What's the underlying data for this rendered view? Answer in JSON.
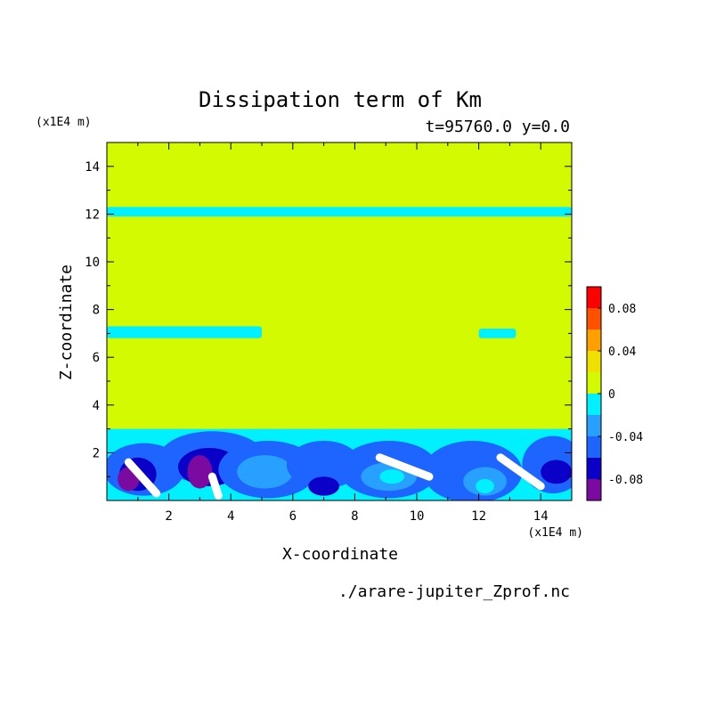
{
  "chart_data": {
    "type": "heatmap",
    "title": "Dissipation term of Km",
    "subtitle": "t=95760.0 y=0.0",
    "xlabel": "X-coordinate",
    "ylabel": "Z-coordinate",
    "x_unit": "(x1E4 m)",
    "y_unit": "(x1E4 m)",
    "source_file": "./arare-jupiter_Zprof.nc",
    "xlim": [
      0,
      15
    ],
    "ylim": [
      0,
      15
    ],
    "x_ticks": [
      2,
      4,
      6,
      8,
      10,
      12,
      14
    ],
    "y_ticks": [
      2,
      4,
      6,
      8,
      10,
      12,
      14
    ],
    "x_tick_labels": [
      "2",
      "4",
      "6",
      "8",
      "10",
      "12",
      "14"
    ],
    "y_tick_labels": [
      "2",
      "4",
      "6",
      "8",
      "10",
      "12",
      "14"
    ],
    "colorbar": {
      "levels": [
        -0.1,
        -0.08,
        -0.06,
        -0.04,
        -0.02,
        0,
        0.02,
        0.04,
        0.06,
        0.08,
        0.1
      ],
      "colors": [
        "#7a0aa0",
        "#0a00c8",
        "#1e64ff",
        "#28a0ff",
        "#00f0ff",
        "#d4fa00",
        "#f0e000",
        "#ffa000",
        "#ff5000",
        "#ff0000",
        "#ffaaaa"
      ],
      "tick_values": [
        -0.08,
        -0.04,
        0,
        0.04,
        0.08
      ],
      "tick_labels": [
        "-0.08",
        "-0.04",
        "0",
        "0.04",
        "0.08"
      ]
    },
    "background_value": 0,
    "regions": [
      {
        "value": -0.02,
        "description": "boundary-layer band",
        "x": [
          0,
          15
        ],
        "z": [
          0,
          3
        ]
      },
      {
        "value": -0.02,
        "description": "upper band",
        "x": [
          0,
          15
        ],
        "z": [
          11.9,
          12.3
        ]
      },
      {
        "value": -0.02,
        "description": "mid patch left",
        "x": [
          0,
          5
        ],
        "z": [
          6.8,
          7.3
        ]
      },
      {
        "value": -0.02,
        "description": "mid patch right",
        "x": [
          12,
          13.2
        ],
        "z": [
          6.8,
          7.2
        ]
      }
    ]
  },
  "colors": {
    "background": "#ffffff",
    "frame": "#000000"
  }
}
